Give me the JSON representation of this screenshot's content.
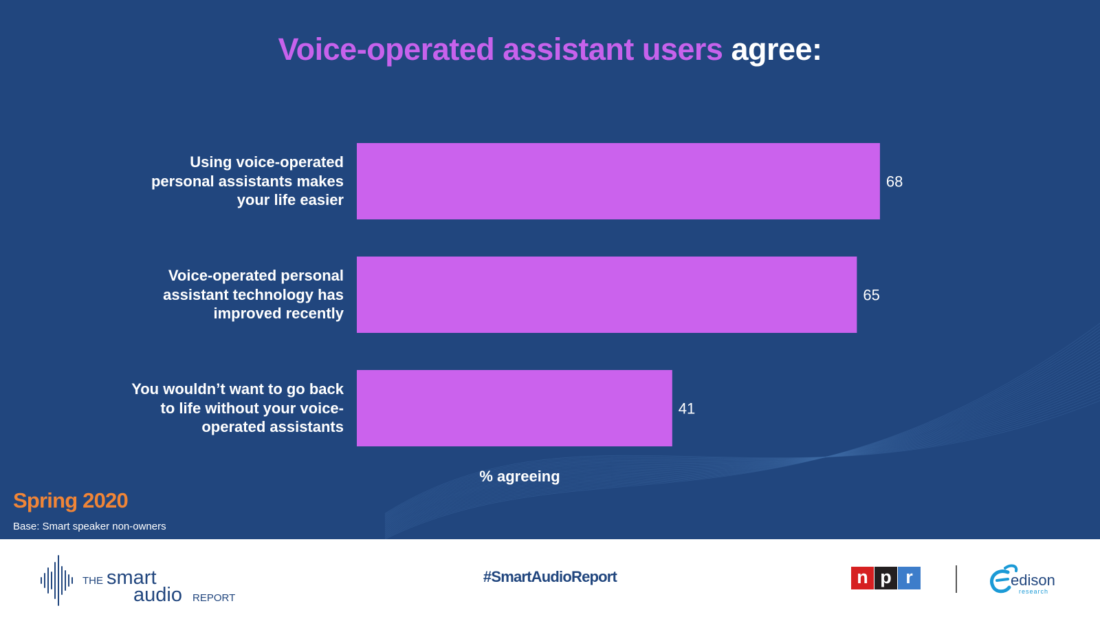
{
  "title": {
    "accent": "Voice-operated assistant users",
    "rest": "agree:"
  },
  "chart_data": {
    "type": "bar",
    "orientation": "horizontal",
    "categories": [
      [
        "Using voice-operated",
        "personal assistants makes",
        "your life easier"
      ],
      [
        "Voice-operated personal",
        "assistant technology has",
        "improved recently"
      ],
      [
        "You wouldn’t want to go back",
        "to life without your voice-",
        "operated assistants"
      ]
    ],
    "values": [
      68,
      65,
      41
    ],
    "xlabel": "% agreeing",
    "xlim": [
      0,
      100
    ],
    "bar_color": "#cb62ed",
    "data_labels": true,
    "grid": false
  },
  "season": "Spring 2020",
  "base_note": "Base: Smart speaker non-owners",
  "footer": {
    "logo_the": "THE",
    "logo_smart": "smart",
    "logo_audio": "audio",
    "logo_report": "REPORT",
    "hashtag": "#SmartAudioReport",
    "npr_letters": [
      "n",
      "p",
      "r"
    ],
    "npr_colors": [
      "#d62021",
      "#231f20",
      "#3d7dca"
    ],
    "edison_name": "edison",
    "edison_sub": "research"
  },
  "colors": {
    "background": "#21467e",
    "accent": "#c762ec",
    "season": "#f08537"
  },
  "icons": [
    "sound-wave-icon",
    "edison-swirl-icon"
  ]
}
